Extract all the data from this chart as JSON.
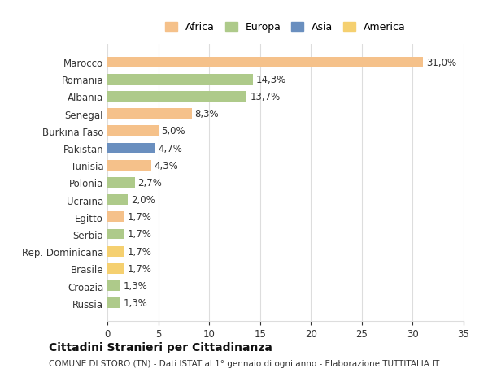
{
  "categories": [
    "Marocco",
    "Romania",
    "Albania",
    "Senegal",
    "Burkina Faso",
    "Pakistan",
    "Tunisia",
    "Polonia",
    "Ucraina",
    "Egitto",
    "Serbia",
    "Rep. Dominicana",
    "Brasile",
    "Croazia",
    "Russia"
  ],
  "values": [
    31.0,
    14.3,
    13.7,
    8.3,
    5.0,
    4.7,
    4.3,
    2.7,
    2.0,
    1.7,
    1.7,
    1.7,
    1.7,
    1.3,
    1.3
  ],
  "labels": [
    "31,0%",
    "14,3%",
    "13,7%",
    "8,3%",
    "5,0%",
    "4,7%",
    "4,3%",
    "2,7%",
    "2,0%",
    "1,7%",
    "1,7%",
    "1,7%",
    "1,7%",
    "1,3%",
    "1,3%"
  ],
  "colors": [
    "#F5C18A",
    "#AECA8A",
    "#AECA8A",
    "#F5C18A",
    "#F5C18A",
    "#6A8FBF",
    "#F5C18A",
    "#AECA8A",
    "#AECA8A",
    "#F5C18A",
    "#AECA8A",
    "#F5D070",
    "#F5D070",
    "#AECA8A",
    "#AECA8A"
  ],
  "legend_labels": [
    "Africa",
    "Europa",
    "Asia",
    "America"
  ],
  "legend_colors": [
    "#F5C18A",
    "#AECA8A",
    "#6A8FBF",
    "#F5D070"
  ],
  "title": "Cittadini Stranieri per Cittadinanza",
  "subtitle": "COMUNE DI STORO (TN) - Dati ISTAT al 1° gennaio di ogni anno - Elaborazione TUTTITALIA.IT",
  "xlim": [
    0,
    35
  ],
  "xticks": [
    0,
    5,
    10,
    15,
    20,
    25,
    30,
    35
  ],
  "bg_color": "#FFFFFF",
  "grid_color": "#DDDDDD",
  "bar_height": 0.6,
  "label_fontsize": 8.5,
  "tick_fontsize": 8.5
}
